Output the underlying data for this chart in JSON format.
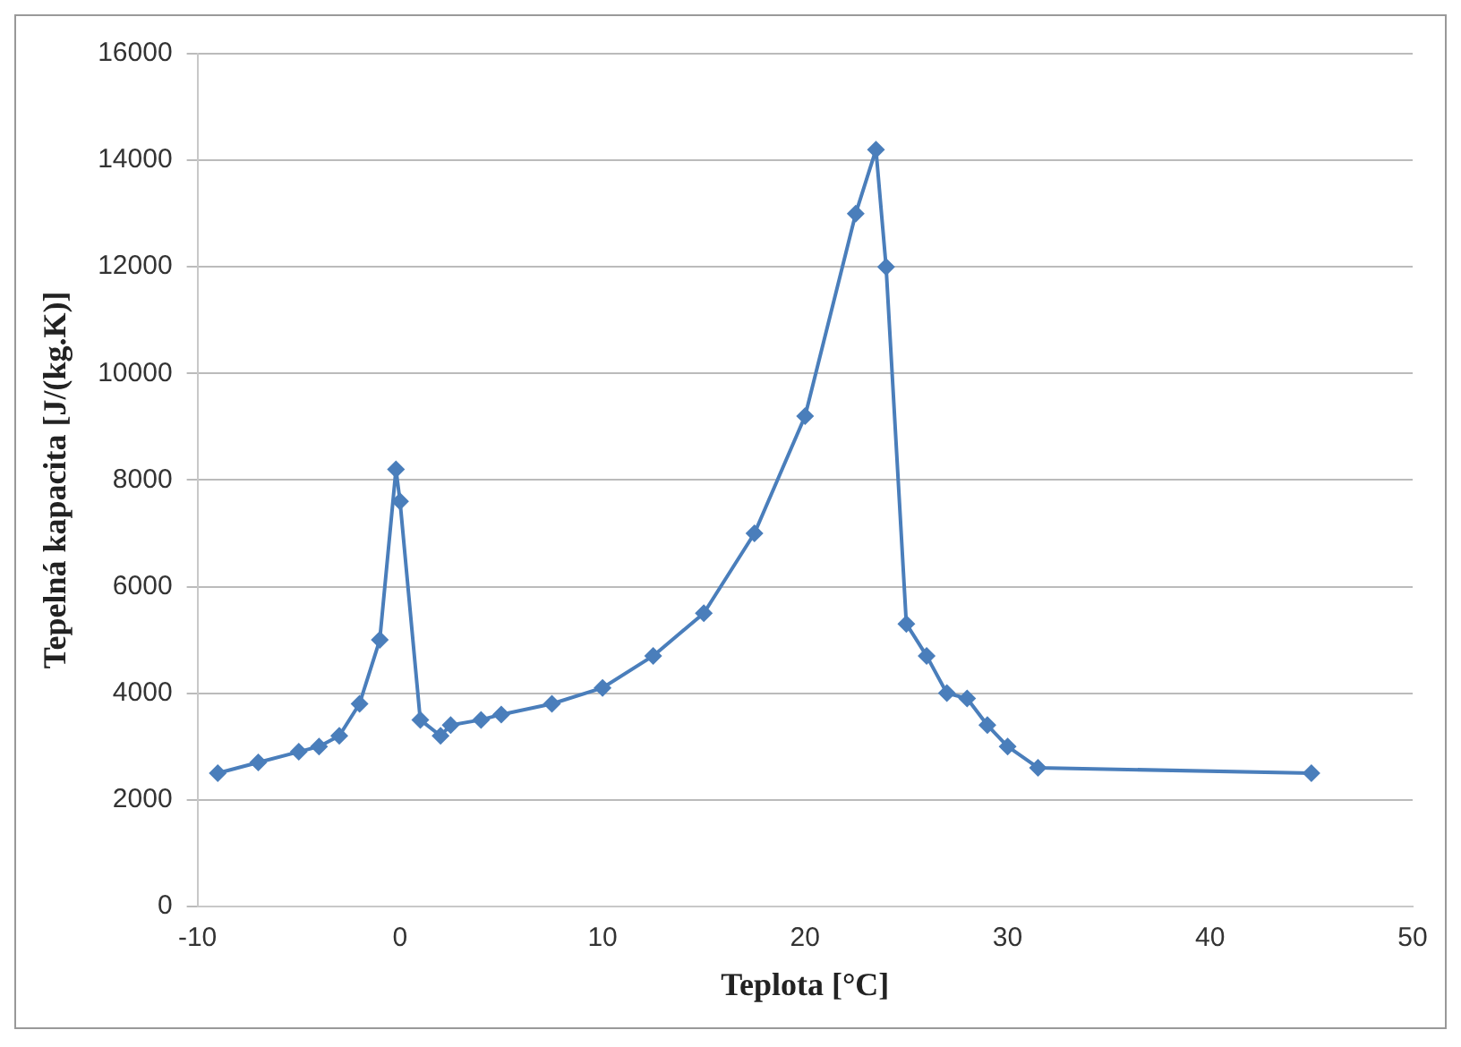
{
  "chart_data": {
    "type": "line",
    "xlabel": "Teplota [°C]",
    "ylabel": "Tepelná kapacita [J/(kg.K)]",
    "x": [
      -9,
      -7,
      -5,
      -4,
      -3,
      -2,
      -1,
      -0.2,
      0,
      1,
      2,
      2.5,
      4,
      5,
      7.5,
      10,
      12.5,
      15,
      17.5,
      20,
      22.5,
      23.5,
      24,
      25,
      26,
      27,
      28,
      29,
      30,
      31.5,
      45
    ],
    "series": [
      {
        "color": "#4a7ebb",
        "values": [
          2500,
          2700,
          2900,
          3000,
          3200,
          3800,
          5000,
          8200,
          7600,
          3500,
          3200,
          3400,
          3500,
          3600,
          3800,
          4100,
          4700,
          5500,
          7000,
          9200,
          13000,
          14200,
          12000,
          5300,
          4700,
          4000,
          3900,
          3400,
          3000,
          2600,
          2500
        ]
      }
    ],
    "xlim": [
      -10,
      50
    ],
    "xticks": [
      -10,
      0,
      10,
      20,
      30,
      40,
      50
    ],
    "ylim": [
      0,
      16000
    ],
    "yticks": [
      0,
      2000,
      4000,
      6000,
      8000,
      10000,
      12000,
      14000,
      16000
    ],
    "grid": "y",
    "legend": false,
    "marker": "diamond",
    "line_style": "solid"
  }
}
